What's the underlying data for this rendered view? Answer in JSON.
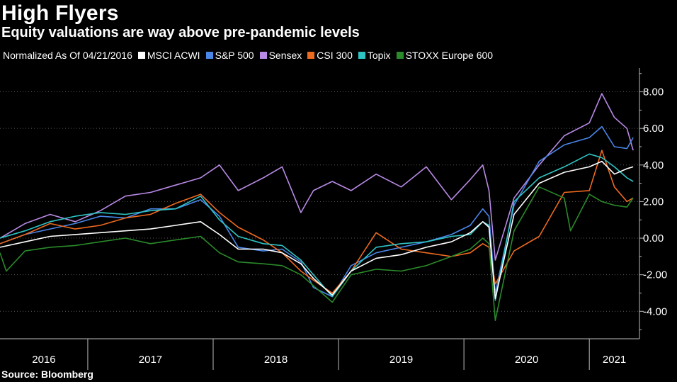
{
  "header": {
    "title": "High Flyers",
    "subtitle": "Equity valuations are way above pre-pandemic levels",
    "source": "Source: Bloomberg"
  },
  "legend": {
    "note": "Normalized As Of 04/21/2016",
    "items": [
      {
        "label": "MSCI ACWI",
        "color": "#ffffff"
      },
      {
        "label": "S&P 500",
        "color": "#4a86e8"
      },
      {
        "label": "Sensex",
        "color": "#b98ae6"
      },
      {
        "label": "CSI 300",
        "color": "#ee6a1f"
      },
      {
        "label": "Topix",
        "color": "#2fc4c4"
      },
      {
        "label": "STOXX Europe 600",
        "color": "#2a8a2a"
      }
    ]
  },
  "chart_data": {
    "type": "line",
    "title": "High Flyers",
    "subtitle": "Equity valuations are way above pre-pandemic levels",
    "xlabel": "",
    "ylabel": "",
    "x_range": [
      2016.3,
      2021.4
    ],
    "ylim": [
      -5.5,
      9.3
    ],
    "y_ticks": [
      -4,
      -2,
      0,
      2,
      4,
      6,
      8
    ],
    "y_tick_labels": [
      "-4.00",
      "-2.00",
      "0.00",
      "2.00",
      "4.00",
      "6.00",
      "8.00"
    ],
    "y_axis_side": "right",
    "grid": "horizontal dashed",
    "x_ticks": [
      2016,
      2017,
      2018,
      2019,
      2020,
      2021
    ],
    "x_tick_labels": [
      "2016",
      "2017",
      "2018",
      "2019",
      "2020",
      "2021"
    ],
    "year_boundaries": [
      2017,
      2018,
      2019,
      2020,
      2021
    ],
    "series": [
      {
        "name": "Sensex",
        "color": "#b98ae6",
        "x": [
          2016.3,
          2016.5,
          2016.7,
          2016.9,
          2017.1,
          2017.3,
          2017.5,
          2017.7,
          2017.9,
          2018.05,
          2018.2,
          2018.4,
          2018.55,
          2018.7,
          2018.8,
          2018.95,
          2019.1,
          2019.3,
          2019.5,
          2019.7,
          2019.9,
          2020.05,
          2020.15,
          2020.2,
          2020.25,
          2020.4,
          2020.6,
          2020.8,
          2021.0,
          2021.1,
          2021.2,
          2021.3,
          2021.35
        ],
        "values": [
          0,
          0.8,
          1.3,
          0.9,
          1.5,
          2.3,
          2.5,
          2.9,
          3.3,
          4.0,
          2.6,
          3.3,
          3.9,
          1.4,
          2.6,
          3.1,
          2.6,
          3.5,
          2.8,
          3.9,
          2.1,
          3.2,
          4.0,
          2.6,
          -1.2,
          2.2,
          4.0,
          5.6,
          6.3,
          7.9,
          6.6,
          6.0,
          4.8
        ]
      },
      {
        "name": "S&P 500",
        "color": "#4a86e8",
        "x": [
          2016.3,
          2016.5,
          2016.7,
          2016.9,
          2017.1,
          2017.3,
          2017.5,
          2017.7,
          2017.9,
          2018.05,
          2018.2,
          2018.4,
          2018.55,
          2018.7,
          2018.8,
          2018.95,
          2019.1,
          2019.3,
          2019.5,
          2019.7,
          2019.9,
          2020.05,
          2020.15,
          2020.2,
          2020.25,
          2020.4,
          2020.6,
          2020.8,
          2021.0,
          2021.1,
          2021.2,
          2021.3,
          2021.35
        ],
        "values": [
          -0.3,
          0.2,
          0.5,
          0.8,
          1.2,
          1.1,
          1.6,
          1.6,
          2.1,
          1.2,
          -0.5,
          -0.7,
          -0.6,
          -1.3,
          -2.7,
          -3.2,
          -1.5,
          -0.8,
          -0.5,
          -0.2,
          0.2,
          0.7,
          1.6,
          1.2,
          -3.0,
          1.8,
          4.2,
          5.1,
          5.5,
          6.1,
          5.0,
          4.9,
          5.5
        ]
      },
      {
        "name": "CSI 300",
        "color": "#ee6a1f",
        "x": [
          2016.3,
          2016.5,
          2016.7,
          2016.9,
          2017.1,
          2017.3,
          2017.5,
          2017.7,
          2017.9,
          2018.05,
          2018.2,
          2018.4,
          2018.55,
          2018.7,
          2018.8,
          2018.95,
          2019.1,
          2019.3,
          2019.5,
          2019.7,
          2019.9,
          2020.05,
          2020.15,
          2020.2,
          2020.25,
          2020.4,
          2020.6,
          2020.8,
          2021.0,
          2021.1,
          2021.2,
          2021.3,
          2021.35
        ],
        "values": [
          -0.3,
          0.2,
          0.8,
          0.5,
          0.7,
          1.1,
          1.3,
          1.9,
          2.4,
          1.4,
          0.6,
          -0.1,
          -0.8,
          -1.8,
          -2.3,
          -3.0,
          -1.8,
          0.3,
          -0.6,
          -0.8,
          -1.0,
          -0.8,
          -0.3,
          -0.5,
          -2.5,
          -0.7,
          0.1,
          2.5,
          2.6,
          4.8,
          2.8,
          2.0,
          2.2
        ]
      },
      {
        "name": "Topix",
        "color": "#2fc4c4",
        "x": [
          2016.3,
          2016.5,
          2016.7,
          2016.9,
          2017.1,
          2017.3,
          2017.5,
          2017.7,
          2017.9,
          2018.05,
          2018.2,
          2018.4,
          2018.55,
          2018.7,
          2018.8,
          2018.95,
          2019.1,
          2019.3,
          2019.5,
          2019.7,
          2019.9,
          2020.05,
          2020.15,
          2020.2,
          2020.25,
          2020.4,
          2020.6,
          2020.8,
          2021.0,
          2021.1,
          2021.2,
          2021.3,
          2021.35
        ],
        "values": [
          0,
          0.4,
          0.9,
          1.2,
          1.4,
          1.3,
          1.5,
          1.6,
          2.3,
          1.0,
          0.1,
          -0.3,
          -0.4,
          -1.2,
          -2.0,
          -3.2,
          -1.8,
          -0.5,
          -0.3,
          -0.2,
          0.1,
          0.2,
          0.9,
          0.7,
          -3.4,
          2.0,
          3.3,
          3.9,
          4.6,
          4.4,
          3.9,
          3.3,
          3.1
        ]
      },
      {
        "name": "MSCI ACWI",
        "color": "#ffffff",
        "x": [
          2016.3,
          2016.5,
          2016.7,
          2016.9,
          2017.1,
          2017.3,
          2017.5,
          2017.7,
          2017.9,
          2018.05,
          2018.2,
          2018.4,
          2018.55,
          2018.7,
          2018.8,
          2018.95,
          2019.1,
          2019.3,
          2019.5,
          2019.7,
          2019.9,
          2020.05,
          2020.15,
          2020.2,
          2020.25,
          2020.4,
          2020.6,
          2020.8,
          2021.0,
          2021.1,
          2021.2,
          2021.3,
          2021.35
        ],
        "values": [
          -0.5,
          -0.2,
          0.1,
          0.2,
          0.3,
          0.4,
          0.5,
          0.7,
          0.9,
          0.2,
          -0.6,
          -0.6,
          -0.8,
          -1.4,
          -2.2,
          -3.1,
          -1.8,
          -1.1,
          -0.9,
          -0.5,
          -0.2,
          0.3,
          0.9,
          0.6,
          -3.3,
          1.3,
          3.0,
          3.6,
          3.9,
          4.2,
          3.5,
          3.8,
          3.9
        ]
      },
      {
        "name": "STOXX Europe 600",
        "color": "#2a8a2a",
        "x": [
          2016.3,
          2016.35,
          2016.5,
          2016.7,
          2016.9,
          2017.1,
          2017.3,
          2017.5,
          2017.7,
          2017.9,
          2018.05,
          2018.2,
          2018.4,
          2018.55,
          2018.7,
          2018.8,
          2018.95,
          2019.1,
          2019.3,
          2019.5,
          2019.7,
          2019.9,
          2020.05,
          2020.15,
          2020.2,
          2020.25,
          2020.4,
          2020.6,
          2020.8,
          2020.85,
          2021.0,
          2021.1,
          2021.2,
          2021.3,
          2021.35
        ],
        "values": [
          -0.8,
          -1.8,
          -0.7,
          -0.5,
          -0.4,
          -0.2,
          0,
          -0.3,
          -0.1,
          0.1,
          -0.8,
          -1.3,
          -1.4,
          -1.5,
          -2.0,
          -2.6,
          -3.5,
          -2.0,
          -1.7,
          -1.8,
          -1.5,
          -1.0,
          -0.6,
          0,
          -0.3,
          -4.5,
          0.4,
          2.8,
          2.2,
          0.4,
          2.4,
          2.0,
          1.8,
          1.7,
          2.2
        ]
      }
    ]
  }
}
